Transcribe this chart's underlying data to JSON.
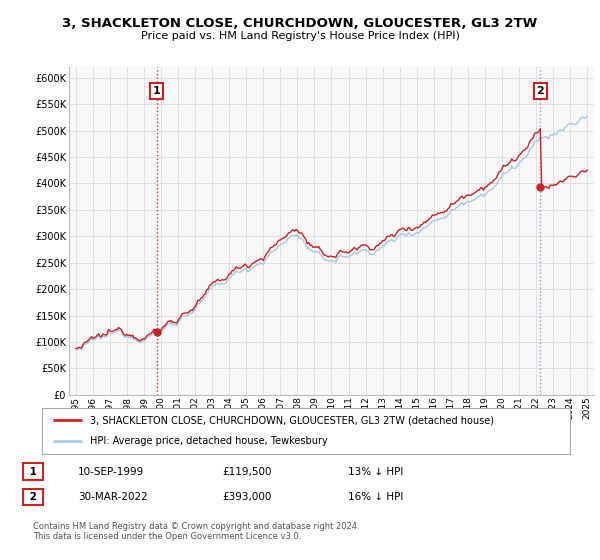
{
  "title": "3, SHACKLETON CLOSE, CHURCHDOWN, GLOUCESTER, GL3 2TW",
  "subtitle": "Price paid vs. HM Land Registry's House Price Index (HPI)",
  "yticks": [
    0,
    50000,
    100000,
    150000,
    200000,
    250000,
    300000,
    350000,
    400000,
    450000,
    500000,
    550000,
    600000
  ],
  "ylim": [
    0,
    620000
  ],
  "sale1_year": 1999.75,
  "sale1_price": 119500,
  "sale2_year": 2022.25,
  "sale2_price": 393000,
  "legend_entry1": "3, SHACKLETON CLOSE, CHURCHDOWN, GLOUCESTER, GL3 2TW (detached house)",
  "legend_entry2": "HPI: Average price, detached house, Tewkesbury",
  "annotation1_label": "1",
  "annotation1_date": "10-SEP-1999",
  "annotation1_price": "£119,500",
  "annotation1_hpi": "13% ↓ HPI",
  "annotation2_label": "2",
  "annotation2_date": "30-MAR-2022",
  "annotation2_price": "£393,000",
  "annotation2_hpi": "16% ↓ HPI",
  "footer": "Contains HM Land Registry data © Crown copyright and database right 2024.\nThis data is licensed under the Open Government Licence v3.0.",
  "hpi_color": "#a8c8e8",
  "sale_color": "#cc2222",
  "vline1_color": "#cc2222",
  "vline2_color": "#8888bb",
  "grid_color": "#e0e0e0",
  "bg_color": "#f8f8f8"
}
